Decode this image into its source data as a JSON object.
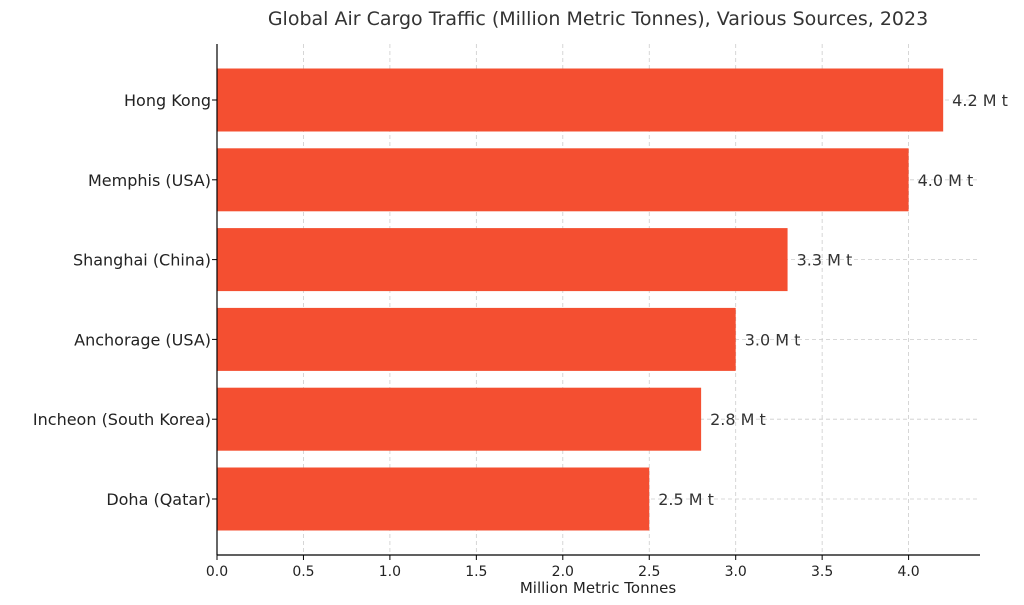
{
  "chart_data": {
    "type": "bar",
    "orientation": "horizontal",
    "title": "Global Air Cargo Traffic (Million Metric Tonnes), Various Sources, 2023",
    "xlabel": "Million Metric Tonnes",
    "ylabel": "",
    "categories": [
      "Hong Kong",
      "Memphis (USA)",
      "Shanghai (China)",
      "Anchorage (USA)",
      "Incheon (South Korea)",
      "Doha (Qatar)"
    ],
    "values": [
      4.2,
      4.0,
      3.3,
      3.0,
      2.8,
      2.5
    ],
    "data_labels": [
      "4.2 M t",
      "4.0 M t",
      "3.3 M t",
      "3.0 M t",
      "2.8 M t",
      "2.5 M t"
    ],
    "xlim": [
      0,
      4.41
    ],
    "xticks": [
      0.0,
      0.5,
      1.0,
      1.5,
      2.0,
      2.5,
      3.0,
      3.5,
      4.0
    ],
    "xtick_labels": [
      "0.0",
      "0.5",
      "1.0",
      "1.5",
      "2.0",
      "2.5",
      "3.0",
      "3.5",
      "4.0"
    ],
    "grid": true,
    "bar_color": "#f44f31"
  }
}
